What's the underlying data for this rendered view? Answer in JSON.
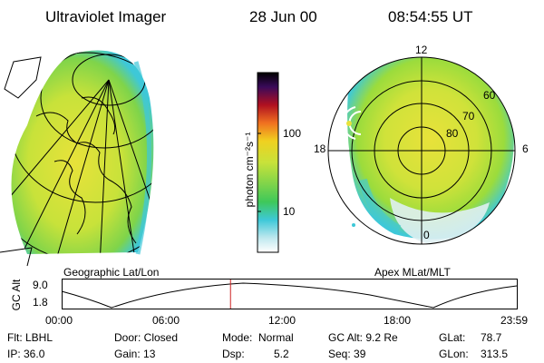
{
  "header": {
    "instrument": "Ultraviolet Imager",
    "date": "28 Jun 00",
    "time": "08:54:55 UT"
  },
  "colorbar": {
    "unit_label": "photon cm⁻²s⁻¹",
    "ticks": [
      "100",
      "10"
    ]
  },
  "left_panel": {
    "caption": "Geographic Lat/Lon"
  },
  "right_panel": {
    "caption": "Apex  MLat/MLT",
    "mlt_labels": {
      "top": "12",
      "left": "18",
      "right": "6",
      "bottom": "0"
    },
    "lat_labels": [
      "60",
      "70",
      "80"
    ]
  },
  "altitude_plot": {
    "ylabel": "GC Alt",
    "yticks": [
      "9.0",
      "1.8"
    ],
    "xticks": [
      "00:00",
      "06:00",
      "12:00",
      "18:00",
      "23:59"
    ],
    "current_time_fraction": 0.37
  },
  "info": {
    "row1": {
      "filter": "Flt: LBHL",
      "door": "Door: Closed",
      "mode_label": "Mode:",
      "mode_value": "Normal",
      "gcalt": "GC Alt: 9.2 Re",
      "glat_label": "GLat:",
      "glat_value": "78.7"
    },
    "row2": {
      "ip": "IP: 36.0",
      "gain": "Gain: 13",
      "dsp_label": "Dsp:",
      "dsp_value": "5.2",
      "seq": "Seq: 39",
      "glon_label": "GLon:",
      "glon_value": "313.5"
    }
  },
  "colors": {
    "bright_green": "#9bdc3c",
    "yellow": "#e8e23a",
    "cyan": "#3ec8d8",
    "marker_red": "#cc2222"
  }
}
